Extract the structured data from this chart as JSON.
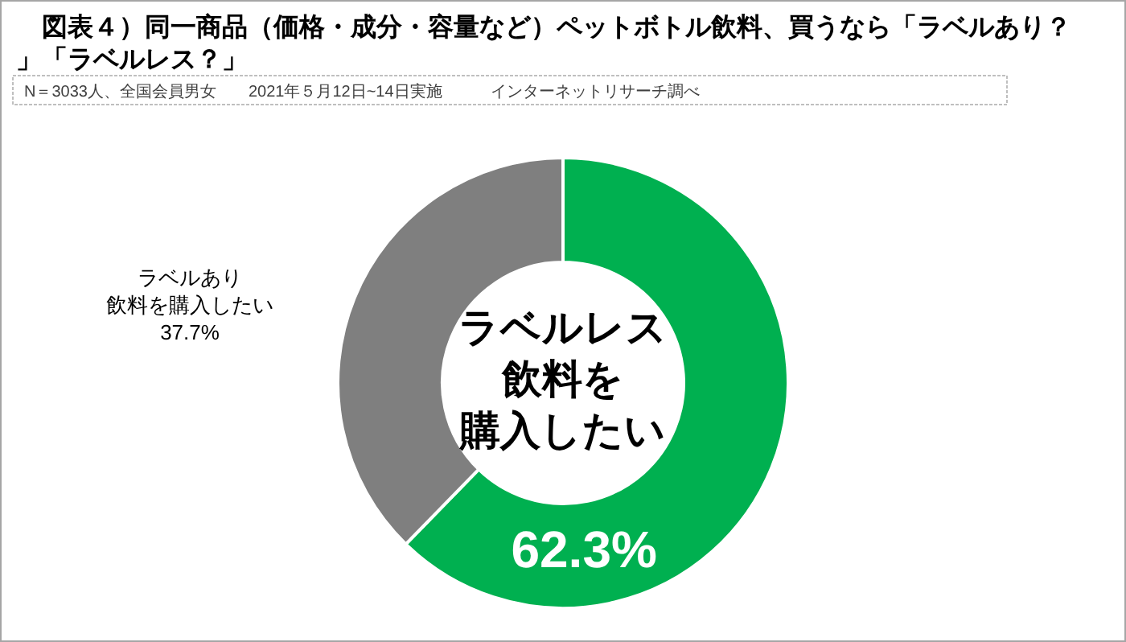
{
  "chart_data": {
    "type": "donut",
    "title": "図表４）同一商品（価格・成分・容量など）ペットボトル飲料、買うなら「ラベルあり？」「ラベルレス？」",
    "subtitle": "N＝3033人、全国会員男女　　2021年５月12日~14日実施　　　インターネットリサーチ調べ",
    "categories": [
      "ラベルレス飲料を購入したい",
      "ラベルあり飲料を購入したい"
    ],
    "values": [
      62.3,
      37.7
    ],
    "colors": [
      "#00b050",
      "#7f7f7f"
    ],
    "value_labels": [
      "62.3%",
      "37.7%"
    ]
  }
}
